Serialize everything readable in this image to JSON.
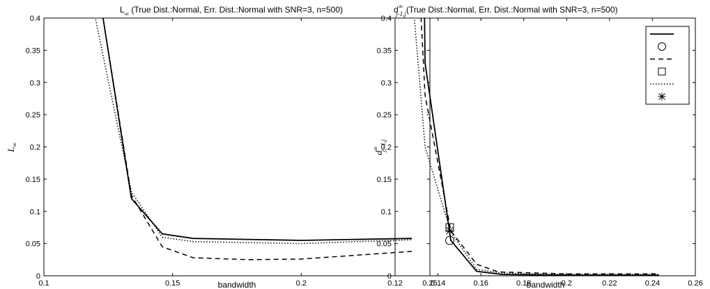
{
  "chart_data": [
    {
      "type": "line",
      "title": "L∞ (True Dist.:Normal, Err. Dist.:Normal with SNR=3, n=500)",
      "title_main": "L",
      "title_sub": "∞",
      "title_rest": " (True Dist.:Normal, Err. Dist.:Normal with SNR=3, n=500)",
      "xlabel": "bandwidth",
      "ylabel": "L∞",
      "ylabel_main": "L",
      "ylabel_sub": "∞",
      "xlim": [
        0.1,
        0.25
      ],
      "ylim": [
        0,
        0.4
      ],
      "xticks": [
        0.1,
        0.15,
        0.2,
        0.25
      ],
      "xtick_labels": [
        "0.1",
        "0.15",
        "0.2",
        "0.25"
      ],
      "yticks": [
        0,
        0.05,
        0.1,
        0.15,
        0.2,
        0.25,
        0.3,
        0.35,
        0.4
      ],
      "ytick_labels": [
        "0",
        "0.05",
        "0.1",
        "0.15",
        "0.2",
        "0.25",
        "0.3",
        "0.35",
        "0.4"
      ],
      "grid": false,
      "series": [
        {
          "style": "solid",
          "color": "#000000",
          "x": [
            0.121,
            0.123,
            0.134,
            0.146,
            0.158,
            0.2,
            0.243
          ],
          "y": [
            0.46,
            0.4,
            0.12,
            0.065,
            0.058,
            0.055,
            0.058
          ]
        },
        {
          "style": "dashed",
          "color": "#000000",
          "x": [
            0.12,
            0.123,
            0.134,
            0.146,
            0.158,
            0.18,
            0.2,
            0.243
          ],
          "y": [
            0.46,
            0.4,
            0.125,
            0.045,
            0.028,
            0.025,
            0.026,
            0.038
          ]
        },
        {
          "style": "dotted",
          "color": "#000000",
          "x": [
            0.118,
            0.121,
            0.134,
            0.146,
            0.158,
            0.2,
            0.243
          ],
          "y": [
            0.44,
            0.38,
            0.13,
            0.06,
            0.053,
            0.05,
            0.056
          ]
        }
      ]
    },
    {
      "type": "line",
      "title": "d∞j-1,j(True Dist.:Normal, Err. Dist.:Normal with SNR=3, n=500)",
      "title_main": "d",
      "title_sup": "∞",
      "title_sub": "j-1,j",
      "title_rest": "(True Dist.:Normal, Err. Dist.:Normal with SNR=3, n=500)",
      "xlabel": "bandwidth",
      "ylabel": "d∞j−1,j",
      "ylabel_main": "d",
      "ylabel_sup": "∞",
      "ylabel_sub": "j−1,j",
      "xlim": [
        0.12,
        0.26
      ],
      "ylim": [
        0,
        0.4
      ],
      "xticks": [
        0.12,
        0.14,
        0.16,
        0.18,
        0.2,
        0.22,
        0.24,
        0.26
      ],
      "xtick_labels": [
        "0.12",
        "0.14",
        "0.16",
        "0.18",
        "0.2",
        "0.22",
        "0.24",
        "0.26"
      ],
      "yticks": [
        0,
        0.05,
        0.1,
        0.15,
        0.2,
        0.25,
        0.3,
        0.35,
        0.4
      ],
      "ytick_labels": [
        "0",
        "0.05",
        "0.1",
        "0.15",
        "0.2",
        "0.25",
        "0.3",
        "0.35",
        "0.4"
      ],
      "grid": false,
      "legend": {
        "placement": "top-right",
        "entries": [
          "solid-line",
          "circle-marker",
          "dashed-line",
          "square-marker",
          "dotted-line",
          "asterisk-marker"
        ]
      },
      "series": [
        {
          "style": "solid",
          "color": "#000000",
          "x": [
            0.1335,
            0.134,
            0.146,
            0.158,
            0.17,
            0.2,
            0.243
          ],
          "y": [
            0.46,
            0.33,
            0.055,
            0.007,
            0.002,
            0.001,
            0.001
          ]
        },
        {
          "style": "dashed",
          "color": "#000000",
          "x": [
            0.1315,
            0.134,
            0.146,
            0.158,
            0.168,
            0.2,
            0.243
          ],
          "y": [
            0.44,
            0.28,
            0.07,
            0.018,
            0.006,
            0.003,
            0.003
          ]
        },
        {
          "style": "dotted",
          "color": "#000000",
          "x": [
            0.128,
            0.134,
            0.146,
            0.158,
            0.17,
            0.2,
            0.243
          ],
          "y": [
            0.44,
            0.2,
            0.068,
            0.01,
            0.004,
            0.002,
            0.002
          ]
        }
      ],
      "markers": [
        {
          "shape": "circle",
          "x": 0.1455,
          "y": 0.055
        },
        {
          "shape": "square",
          "x": 0.1455,
          "y": 0.075
        },
        {
          "shape": "asterisk",
          "x": 0.1455,
          "y": 0.07
        }
      ]
    }
  ]
}
